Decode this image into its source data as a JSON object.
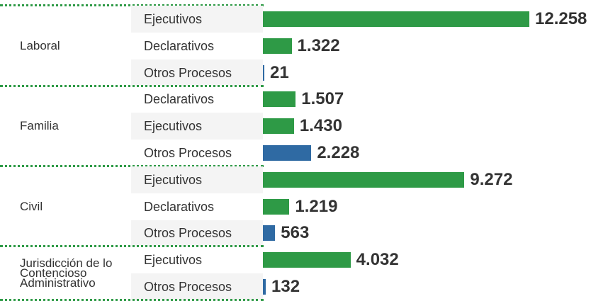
{
  "chart_data": {
    "type": "bar",
    "groups": [
      {
        "name": "Laboral",
        "categories": [
          "Ejecutivos",
          "Declarativos",
          "Otros Procesos"
        ],
        "values": [
          12258,
          1322,
          21
        ],
        "value_labels": [
          "12.258",
          "1.322",
          "21"
        ],
        "colors": [
          "#2e9a46",
          "#2e9a46",
          "#2f6aa3"
        ]
      },
      {
        "name": "Familia",
        "categories": [
          "Declarativos",
          "Ejecutivos",
          "Otros Procesos"
        ],
        "values": [
          1507,
          1430,
          2228
        ],
        "value_labels": [
          "1.507",
          "1.430",
          "2.228"
        ],
        "colors": [
          "#2e9a46",
          "#2e9a46",
          "#2f6aa3"
        ]
      },
      {
        "name": "Civil",
        "categories": [
          "Ejecutivos",
          "Declarativos",
          "Otros Procesos"
        ],
        "values": [
          9272,
          1219,
          563
        ],
        "value_labels": [
          "9.272",
          "1.219",
          "563"
        ],
        "colors": [
          "#2e9a46",
          "#2e9a46",
          "#2f6aa3"
        ]
      },
      {
        "name": "Jurisdicción de lo Contencioso Administrativo",
        "categories": [
          "Ejecutivos",
          "Otros Procesos"
        ],
        "values": [
          4032,
          132
        ],
        "value_labels": [
          "4.032",
          "132"
        ],
        "colors": [
          "#2e9a46",
          "#2f6aa3"
        ]
      }
    ]
  }
}
